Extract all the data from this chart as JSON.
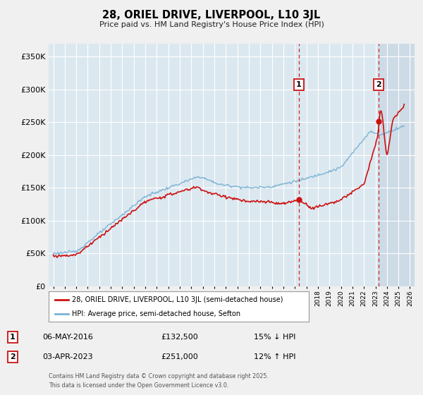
{
  "title1": "28, ORIEL DRIVE, LIVERPOOL, L10 3JL",
  "title2": "Price paid vs. HM Land Registry's House Price Index (HPI)",
  "hpi_label": "HPI: Average price, semi-detached house, Sefton",
  "property_label": "28, ORIEL DRIVE, LIVERPOOL, L10 3JL (semi-detached house)",
  "hpi_color": "#7ab3d4",
  "property_color": "#cc1111",
  "marker1_x": 2016.35,
  "marker1_value": 132500,
  "marker1_label": "06-MAY-2016",
  "marker1_price": "£132,500",
  "marker1_hpi": "15% ↓ HPI",
  "marker2_x": 2023.27,
  "marker2_value": 251000,
  "marker2_label": "03-APR-2023",
  "marker2_price": "£251,000",
  "marker2_hpi": "12% ↑ HPI",
  "footer": "Contains HM Land Registry data © Crown copyright and database right 2025.\nThis data is licensed under the Open Government Licence v3.0.",
  "xlim": [
    1994.6,
    2026.4
  ],
  "ylim": [
    0,
    370000
  ],
  "yticks": [
    0,
    50000,
    100000,
    150000,
    200000,
    250000,
    300000,
    350000
  ],
  "fig_bg": "#f0f0f0",
  "plot_bg": "#dce8f0",
  "future_bg": "#ccdbe6",
  "grid_color": "#ffffff"
}
